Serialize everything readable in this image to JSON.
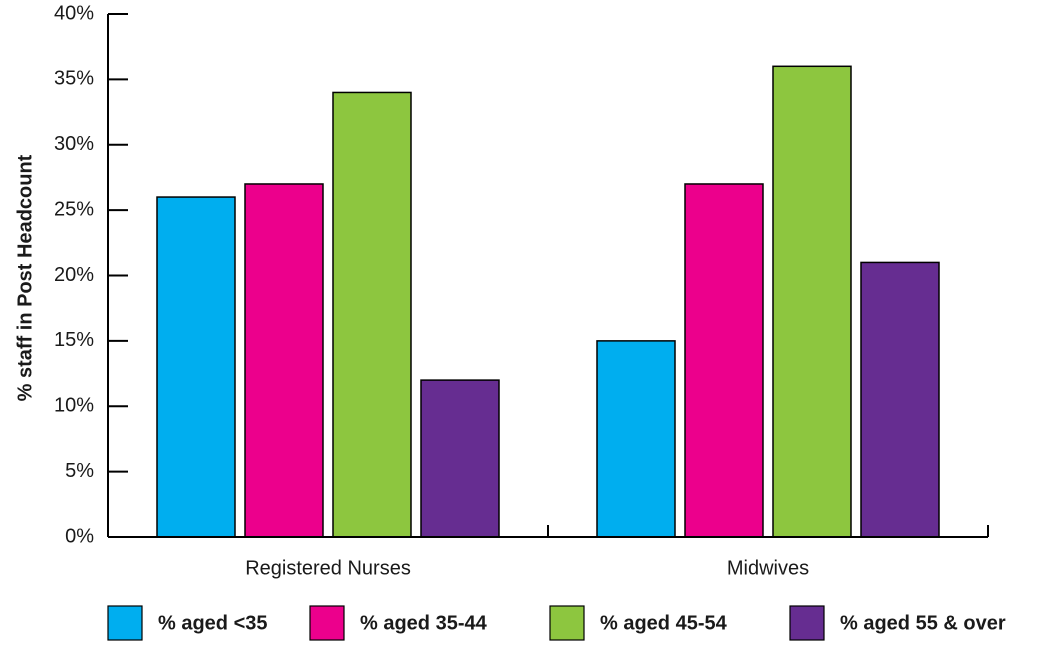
{
  "chart_data": {
    "type": "bar",
    "title": "",
    "xlabel": "",
    "ylabel": "% staff in Post Headcount",
    "ylim": [
      0,
      40
    ],
    "yticks": [
      0,
      5,
      10,
      15,
      20,
      25,
      30,
      35,
      40
    ],
    "ytick_format": "{v}%",
    "grid": false,
    "legend_position": "bottom",
    "categories": [
      "Registered Nurses",
      "Midwives"
    ],
    "series": [
      {
        "name": "% aged <35",
        "color": "#00aeef",
        "values": [
          26,
          15
        ]
      },
      {
        "name": "% aged 35-44",
        "color": "#ec008c",
        "values": [
          27,
          27
        ]
      },
      {
        "name": "% aged 45-54",
        "color": "#8dc63f",
        "values": [
          34,
          36
        ]
      },
      {
        "name": "% aged 55 & over",
        "color": "#662d91",
        "values": [
          12,
          21
        ]
      }
    ]
  }
}
